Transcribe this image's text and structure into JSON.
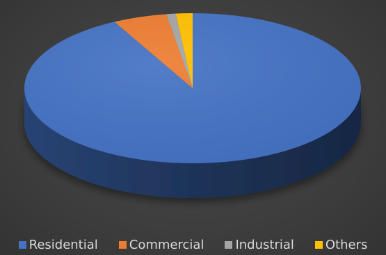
{
  "chart_data": {
    "type": "pie",
    "title": "",
    "categories": [
      "Residential",
      "Commercial",
      "Industrial",
      "Others"
    ],
    "values": [
      92.3,
      5.2,
      0.9,
      1.6
    ],
    "colors": [
      "#4472c4",
      "#ed7d31",
      "#a5a5a5",
      "#ffc000"
    ],
    "legend_position": "bottom",
    "style": "3d"
  }
}
